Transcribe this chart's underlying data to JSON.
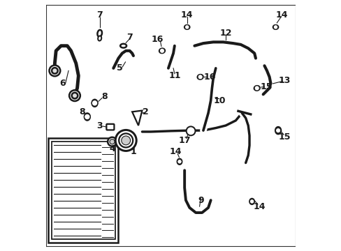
{
  "title": "",
  "background_color": "#ffffff",
  "line_color": "#1a1a1a",
  "line_width": 1.8,
  "fig_width": 4.89,
  "fig_height": 3.6,
  "dpi": 100
}
